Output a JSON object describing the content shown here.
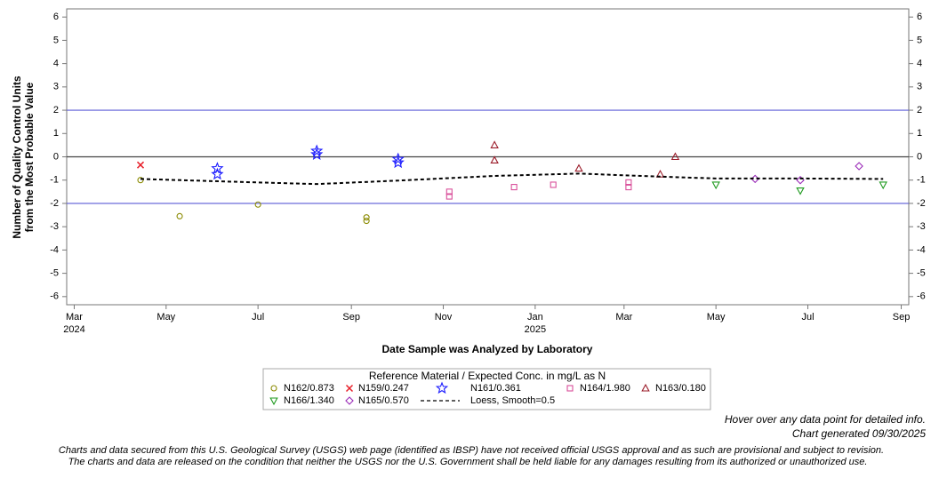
{
  "chart_data": {
    "type": "scatter",
    "y_label_lines": [
      "Number of Quality Control Units",
      "from the Most Probable Value"
    ],
    "x_label": "Date Sample was Analyzed by Laboratory",
    "legend_title": "Reference Material / Expected Conc. in mg/L as N",
    "xlim": [
      "2024-02-25",
      "2025-09-06"
    ],
    "ylim": [
      -6.35,
      6.35
    ],
    "yticks": [
      -6,
      -5,
      -4,
      -3,
      -2,
      -1,
      0,
      1,
      2,
      3,
      4,
      5,
      6
    ],
    "xticks": [
      {
        "value": "2024-03-01",
        "label": "Mar",
        "year": "2024"
      },
      {
        "value": "2024-05-01",
        "label": "May"
      },
      {
        "value": "2024-07-01",
        "label": "Jul"
      },
      {
        "value": "2024-09-01",
        "label": "Sep"
      },
      {
        "value": "2024-11-01",
        "label": "Nov"
      },
      {
        "value": "2025-01-01",
        "label": "Jan",
        "year": "2025"
      },
      {
        "value": "2025-03-01",
        "label": "Mar"
      },
      {
        "value": "2025-05-01",
        "label": "May"
      },
      {
        "value": "2025-07-01",
        "label": "Jul"
      },
      {
        "value": "2025-09-01",
        "label": "Sep"
      }
    ],
    "ref_lines": [
      {
        "value": 2,
        "color": "#5b5bd6"
      },
      {
        "value": 0,
        "color": "#444444"
      },
      {
        "value": -2,
        "color": "#5b5bd6"
      }
    ],
    "series": [
      {
        "name": "N162/0.873",
        "color": "#8a8a00",
        "marker": "circle",
        "x": [
          "2024-04-14",
          "2024-05-10",
          "2024-07-01",
          "2024-09-11",
          "2024-09-11"
        ],
        "values": [
          -1.0,
          -2.55,
          -2.05,
          -2.6,
          -2.75
        ]
      },
      {
        "name": "N159/0.247",
        "color": "#e8202a",
        "marker": "x",
        "x": [
          "2024-04-14"
        ],
        "values": [
          -0.35
        ]
      },
      {
        "name": "N161/0.361",
        "color": "#1a1aff",
        "marker": "star",
        "x": [
          "2024-06-04",
          "2024-06-04",
          "2024-08-09",
          "2024-08-09",
          "2024-10-02",
          "2024-10-02"
        ],
        "values": [
          -0.5,
          -0.75,
          0.25,
          0.1,
          -0.1,
          -0.25
        ]
      },
      {
        "name": "N164/1.980",
        "color": "#d94f9a",
        "marker": "square",
        "x": [
          "2024-11-05",
          "2024-11-05",
          "2024-12-18",
          "2025-01-13",
          "2025-03-04",
          "2025-03-04"
        ],
        "values": [
          -1.5,
          -1.7,
          -1.3,
          -1.2,
          -1.1,
          -1.3
        ]
      },
      {
        "name": "N163/0.180",
        "color": "#9b1c2a",
        "marker": "triangle",
        "x": [
          "2024-12-05",
          "2024-12-05",
          "2025-01-30",
          "2025-03-25",
          "2025-04-04"
        ],
        "values": [
          0.5,
          -0.15,
          -0.5,
          -0.75,
          0.0
        ]
      },
      {
        "name": "N166/1.340",
        "color": "#1f9a1f",
        "marker": "triangle-down",
        "x": [
          "2025-05-01",
          "2025-06-26",
          "2025-08-20"
        ],
        "values": [
          -1.2,
          -1.45,
          -1.2
        ]
      },
      {
        "name": "N165/0.570",
        "color": "#9a2ab8",
        "marker": "diamond",
        "x": [
          "2025-05-27",
          "2025-06-26",
          "2025-08-04"
        ],
        "values": [
          -0.95,
          -1.0,
          -0.4
        ]
      },
      {
        "name": "Loess, Smooth=0.5",
        "color": "#000000",
        "marker": "dashed-line",
        "x": [
          "2024-04-14",
          "2024-07-01",
          "2024-08-09",
          "2024-10-02",
          "2024-12-05",
          "2025-01-30",
          "2025-03-25",
          "2025-05-01",
          "2025-06-26",
          "2025-08-20"
        ],
        "values": [
          -0.95,
          -1.1,
          -1.17,
          -1.02,
          -0.82,
          -0.72,
          -0.85,
          -0.93,
          -0.93,
          -0.95
        ]
      }
    ],
    "notes": [
      "Hover over any data point for detailed info.",
      "Chart generated 09/30/2025"
    ],
    "disclaimer": [
      "Charts and data secured from this U.S. Geological Survey (USGS) web page (identified as IBSP) have not received official USGS approval and as such are provisional and subject to revision.",
      "The charts and data are released on the condition that neither the USGS nor the U.S. Government shall be held liable for any damages resulting from its authorized or unauthorized use."
    ]
  }
}
